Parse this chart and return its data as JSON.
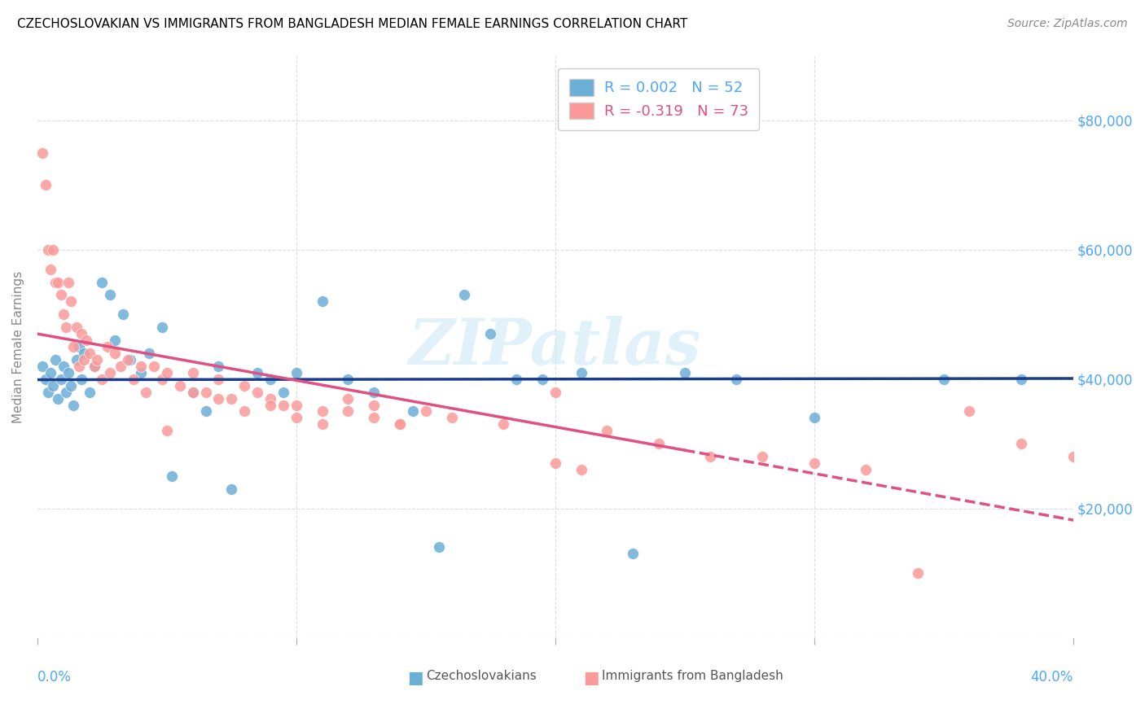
{
  "title": "CZECHOSLOVAKIAN VS IMMIGRANTS FROM BANGLADESH MEDIAN FEMALE EARNINGS CORRELATION CHART",
  "source": "Source: ZipAtlas.com",
  "ylabel": "Median Female Earnings",
  "xlim": [
    0.0,
    0.4
  ],
  "ylim": [
    0,
    90000
  ],
  "color_czech": "#6baed6",
  "color_bangladesh": "#fb9a99",
  "color_line_czech": "#1a3e8c",
  "color_line_bangladesh": "#e05080",
  "czech_x": [
    0.002,
    0.003,
    0.004,
    0.005,
    0.006,
    0.007,
    0.008,
    0.009,
    0.01,
    0.011,
    0.012,
    0.013,
    0.014,
    0.015,
    0.016,
    0.017,
    0.018,
    0.02,
    0.022,
    0.025,
    0.028,
    0.03,
    0.033,
    0.036,
    0.04,
    0.043,
    0.048,
    0.052,
    0.06,
    0.065,
    0.07,
    0.075,
    0.085,
    0.09,
    0.095,
    0.1,
    0.11,
    0.12,
    0.13,
    0.145,
    0.155,
    0.165,
    0.175,
    0.185,
    0.195,
    0.21,
    0.23,
    0.25,
    0.27,
    0.3,
    0.35,
    0.38
  ],
  "czech_y": [
    42000,
    40000,
    38000,
    41000,
    39000,
    43000,
    37000,
    40000,
    42000,
    38000,
    41000,
    39000,
    36000,
    43000,
    45000,
    40000,
    44000,
    38000,
    42000,
    55000,
    53000,
    46000,
    50000,
    43000,
    41000,
    44000,
    48000,
    25000,
    38000,
    35000,
    42000,
    23000,
    41000,
    40000,
    38000,
    41000,
    52000,
    40000,
    38000,
    35000,
    14000,
    53000,
    47000,
    40000,
    40000,
    41000,
    13000,
    41000,
    40000,
    34000,
    40000,
    40000
  ],
  "bangladesh_x": [
    0.002,
    0.003,
    0.004,
    0.005,
    0.006,
    0.007,
    0.008,
    0.009,
    0.01,
    0.011,
    0.012,
    0.013,
    0.014,
    0.015,
    0.016,
    0.017,
    0.018,
    0.019,
    0.02,
    0.022,
    0.023,
    0.025,
    0.027,
    0.028,
    0.03,
    0.032,
    0.035,
    0.037,
    0.04,
    0.042,
    0.045,
    0.048,
    0.05,
    0.055,
    0.06,
    0.065,
    0.07,
    0.075,
    0.08,
    0.085,
    0.09,
    0.095,
    0.1,
    0.11,
    0.12,
    0.13,
    0.14,
    0.15,
    0.16,
    0.18,
    0.2,
    0.22,
    0.24,
    0.26,
    0.28,
    0.3,
    0.32,
    0.34,
    0.36,
    0.38,
    0.4,
    0.2,
    0.21,
    0.05,
    0.06,
    0.07,
    0.08,
    0.09,
    0.1,
    0.11,
    0.12,
    0.13,
    0.14
  ],
  "bangladesh_y": [
    75000,
    70000,
    60000,
    57000,
    60000,
    55000,
    55000,
    53000,
    50000,
    48000,
    55000,
    52000,
    45000,
    48000,
    42000,
    47000,
    43000,
    46000,
    44000,
    42000,
    43000,
    40000,
    45000,
    41000,
    44000,
    42000,
    43000,
    40000,
    42000,
    38000,
    42000,
    40000,
    41000,
    39000,
    41000,
    38000,
    40000,
    37000,
    39000,
    38000,
    37000,
    36000,
    36000,
    35000,
    37000,
    36000,
    33000,
    35000,
    34000,
    33000,
    38000,
    32000,
    30000,
    28000,
    28000,
    27000,
    26000,
    10000,
    35000,
    30000,
    28000,
    27000,
    26000,
    32000,
    38000,
    37000,
    35000,
    36000,
    34000,
    33000,
    35000,
    34000,
    33000
  ]
}
